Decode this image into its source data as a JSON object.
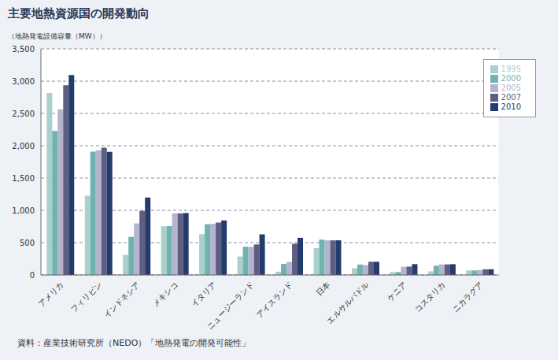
{
  "chart_data": {
    "type": "bar",
    "title": "主要地熱資源国の開発動向",
    "y_label": "（地熱発電設備容量（MW））",
    "source": "資料：産業技術研究所（NEDO）「地熱発電の開発可能性」",
    "categories": [
      "アメリカ",
      "フィリピン",
      "インドネシア",
      "メキシコ",
      "イタリア",
      "ニュージーランド",
      "アイスランド",
      "日本",
      "エルサルバドル",
      "ケニア",
      "コスタリカ",
      "ニカラグア"
    ],
    "series": [
      {
        "name": "1995",
        "color": "#a8d0cc",
        "values": [
          2817,
          1227,
          310,
          753,
          632,
          286,
          50,
          414,
          105,
          45,
          55,
          70
        ]
      },
      {
        "name": "2000",
        "color": "#6fb3b0",
        "values": [
          2228,
          1909,
          590,
          755,
          785,
          437,
          170,
          547,
          161,
          45,
          143,
          70
        ]
      },
      {
        "name": "2005",
        "color": "#b4b4cc",
        "values": [
          2564,
          1931,
          797,
          953,
          791,
          435,
          202,
          535,
          151,
          127,
          163,
          77
        ]
      },
      {
        "name": "2007",
        "color": "#5e5d84",
        "values": [
          2936,
          1970,
          992,
          953,
          811,
          472,
          483,
          535,
          204,
          129,
          163,
          87
        ]
      },
      {
        "name": "2010",
        "color": "#243c6c",
        "values": [
          3093,
          1904,
          1197,
          958,
          843,
          628,
          575,
          536,
          204,
          167,
          166,
          88
        ]
      }
    ],
    "ylim": [
      0,
      3500
    ],
    "yticks": [
      0,
      500,
      {
        "value": 1000,
        "label": "1,000"
      },
      {
        "value": 1500,
        "label": "1,500"
      },
      {
        "value": 2000,
        "label": "2,000"
      },
      {
        "value": 2500,
        "label": "2,500"
      },
      {
        "value": 3000,
        "label": "3,000"
      },
      {
        "value": 3500,
        "label": "3,500"
      }
    ],
    "grid": true,
    "legend": "upper right"
  }
}
